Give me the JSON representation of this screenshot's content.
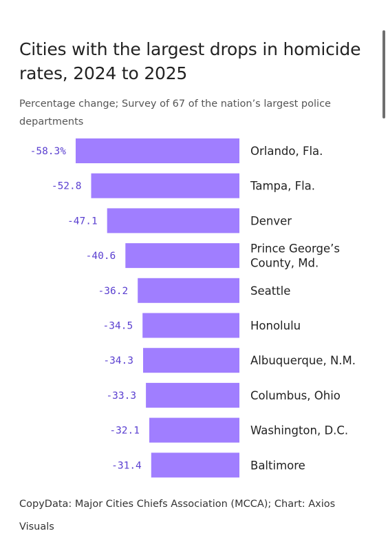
{
  "title": "Cities with the largest drops in homicide rates, 2024 to 2025",
  "subtitle": "Percentage change; Survey of 67 of the nation’s largest police departments",
  "footer": "CopyData: Major Cities Chiefs Association (MCCA); Chart: Axios Visuals",
  "colors": {
    "bar": "#a07eff",
    "value_label": "#5a3fd0",
    "city_label": "#222222"
  },
  "chart_data": {
    "type": "bar",
    "orientation": "horizontal",
    "title": "Cities with the largest drops in homicide rates, 2024 to 2025",
    "subtitle": "Percentage change; Survey of 67 of the nation’s largest police departments",
    "xlabel": "",
    "ylabel": "",
    "xlim": [
      -58.3,
      0
    ],
    "categories": [
      [
        "Orlando, Fla."
      ],
      [
        "Tampa, Fla."
      ],
      [
        "Denver"
      ],
      [
        "Prince George’s",
        "County, Md."
      ],
      [
        "Seattle"
      ],
      [
        "Honolulu"
      ],
      [
        "Albuquerque, N.M."
      ],
      [
        "Columbus, Ohio"
      ],
      [
        "Washington, D.C."
      ],
      [
        "Baltimore"
      ]
    ],
    "values": [
      -58.3,
      -52.8,
      -47.1,
      -40.6,
      -36.2,
      -34.5,
      -34.3,
      -33.3,
      -32.1,
      -31.4
    ],
    "value_labels": [
      "-58.3%",
      "-52.8",
      "-47.1",
      "-40.6",
      "-36.2",
      "-34.5",
      "-34.3",
      "-33.3",
      "-32.1",
      "-31.4"
    ],
    "grid": false,
    "legend": "none"
  }
}
